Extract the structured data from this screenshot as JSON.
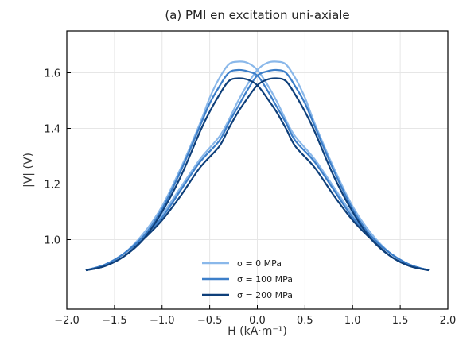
{
  "chart_data": {
    "type": "line",
    "title": "(a) PMI en excitation uni-axiale",
    "xlabel": "H  (kA·m⁻¹)",
    "ylabel": "|V|  (V)",
    "xlim": [
      -2.0,
      2.0
    ],
    "ylim": [
      0.75,
      1.75
    ],
    "xticks": [
      -2.0,
      -1.5,
      -1.0,
      -0.5,
      0.0,
      0.5,
      1.0,
      1.5,
      2.0
    ],
    "xtick_labels": [
      "−2.0",
      "−1.5",
      "−1.0",
      "−0.5",
      "0.0",
      "0.5",
      "1.0",
      "1.5",
      "2.0"
    ],
    "yticks": [
      1.0,
      1.2,
      1.4,
      1.6
    ],
    "ytick_labels": [
      "1.0",
      "1.2",
      "1.4",
      "1.6"
    ],
    "grid": true,
    "legend_position": "lower center",
    "series": [
      {
        "name": "σ = 0 MPa",
        "color": "#8ab8ea",
        "branch_up": {
          "x": [
            -1.8,
            -1.6,
            -1.4,
            -1.2,
            -1.0,
            -0.8,
            -0.6,
            -0.4,
            -0.3,
            -0.2,
            -0.1,
            0.0,
            0.1,
            0.2,
            0.3,
            0.4,
            0.5,
            0.6,
            0.8,
            1.0,
            1.2,
            1.4,
            1.6,
            1.8
          ],
          "y": [
            0.89,
            0.91,
            0.95,
            1.01,
            1.09,
            1.19,
            1.29,
            1.37,
            1.43,
            1.5,
            1.56,
            1.61,
            1.635,
            1.64,
            1.63,
            1.58,
            1.51,
            1.42,
            1.26,
            1.12,
            1.02,
            0.95,
            0.91,
            0.89
          ]
        },
        "branch_down": {
          "x": [
            -1.8,
            -1.6,
            -1.4,
            -1.2,
            -1.0,
            -0.8,
            -0.6,
            -0.5,
            -0.4,
            -0.3,
            -0.2,
            -0.1,
            0.0,
            0.1,
            0.2,
            0.3,
            0.4,
            0.6,
            0.8,
            1.0,
            1.2,
            1.4,
            1.6,
            1.8
          ],
          "y": [
            0.89,
            0.91,
            0.95,
            1.02,
            1.12,
            1.26,
            1.42,
            1.51,
            1.58,
            1.63,
            1.64,
            1.635,
            1.61,
            1.56,
            1.5,
            1.43,
            1.37,
            1.29,
            1.19,
            1.09,
            1.01,
            0.95,
            0.91,
            0.89
          ]
        }
      },
      {
        "name": "σ = 100 MPa",
        "color": "#3d7fc9",
        "branch_up": {
          "x": [
            -1.8,
            -1.6,
            -1.4,
            -1.2,
            -1.0,
            -0.8,
            -0.6,
            -0.4,
            -0.3,
            -0.2,
            -0.1,
            0.0,
            0.1,
            0.2,
            0.3,
            0.4,
            0.5,
            0.6,
            0.8,
            1.0,
            1.2,
            1.4,
            1.6,
            1.8
          ],
          "y": [
            0.89,
            0.91,
            0.95,
            1.01,
            1.08,
            1.18,
            1.28,
            1.355,
            1.42,
            1.48,
            1.54,
            1.59,
            1.605,
            1.61,
            1.6,
            1.55,
            1.49,
            1.41,
            1.25,
            1.11,
            1.01,
            0.95,
            0.91,
            0.89
          ]
        },
        "branch_down": {
          "x": [
            -1.8,
            -1.6,
            -1.4,
            -1.2,
            -1.0,
            -0.8,
            -0.6,
            -0.5,
            -0.4,
            -0.3,
            -0.2,
            -0.1,
            0.0,
            0.1,
            0.2,
            0.3,
            0.4,
            0.6,
            0.8,
            1.0,
            1.2,
            1.4,
            1.6,
            1.8
          ],
          "y": [
            0.89,
            0.91,
            0.95,
            1.01,
            1.11,
            1.25,
            1.41,
            1.49,
            1.55,
            1.6,
            1.61,
            1.605,
            1.59,
            1.54,
            1.48,
            1.42,
            1.355,
            1.28,
            1.18,
            1.08,
            1.01,
            0.95,
            0.91,
            0.89
          ]
        }
      },
      {
        "name": "σ = 200 MPa",
        "color": "#0e3f7a",
        "branch_up": {
          "x": [
            -1.8,
            -1.6,
            -1.4,
            -1.2,
            -1.0,
            -0.8,
            -0.6,
            -0.4,
            -0.3,
            -0.2,
            -0.1,
            0.0,
            0.1,
            0.2,
            0.3,
            0.4,
            0.5,
            0.6,
            0.8,
            1.0,
            1.2,
            1.4,
            1.6,
            1.8
          ],
          "y": [
            0.89,
            0.905,
            0.94,
            1.0,
            1.07,
            1.16,
            1.26,
            1.335,
            1.4,
            1.46,
            1.51,
            1.555,
            1.575,
            1.58,
            1.57,
            1.52,
            1.46,
            1.39,
            1.23,
            1.1,
            1.0,
            0.94,
            0.905,
            0.89
          ]
        },
        "branch_down": {
          "x": [
            -1.8,
            -1.6,
            -1.4,
            -1.2,
            -1.0,
            -0.8,
            -0.6,
            -0.5,
            -0.4,
            -0.3,
            -0.2,
            -0.1,
            0.0,
            0.1,
            0.2,
            0.3,
            0.4,
            0.6,
            0.8,
            1.0,
            1.2,
            1.4,
            1.6,
            1.8
          ],
          "y": [
            0.89,
            0.905,
            0.94,
            1.0,
            1.1,
            1.23,
            1.39,
            1.46,
            1.52,
            1.57,
            1.58,
            1.575,
            1.555,
            1.51,
            1.46,
            1.4,
            1.335,
            1.26,
            1.16,
            1.07,
            1.0,
            0.94,
            0.905,
            0.89
          ]
        }
      }
    ]
  }
}
